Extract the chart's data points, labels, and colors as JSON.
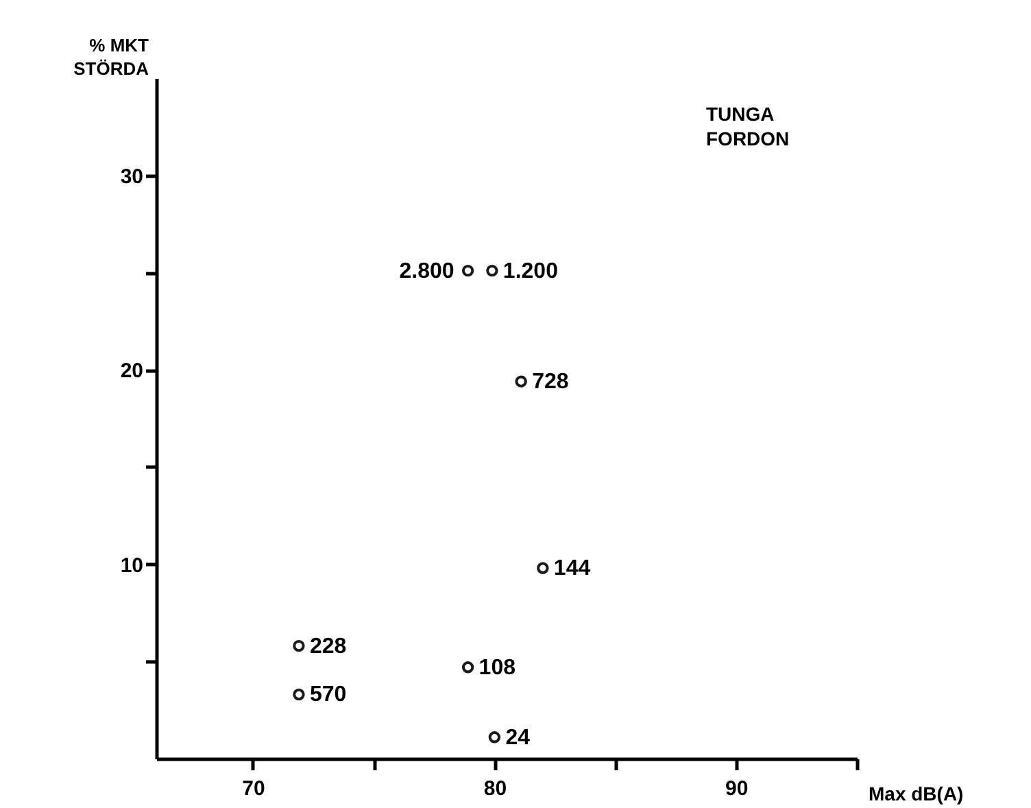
{
  "chart_data": {
    "type": "scatter",
    "xlabel": "Max dB(A)",
    "ylabel": "% MKT\nSTÖRDA",
    "annotations": [
      "TUNGA\nFORDON",
      {
        "text": "2.800",
        "x": 78.9,
        "y": 25.1
      },
      {
        "text": "1.200",
        "x": 79.9,
        "y": 25.1
      },
      {
        "text": "728",
        "x": 81.1,
        "y": 19.4
      },
      {
        "text": "144",
        "x": 82.0,
        "y": 9.8
      },
      {
        "text": "228",
        "x": 71.9,
        "y": 5.8
      },
      {
        "text": "570",
        "x": 71.9,
        "y": 3.3
      },
      {
        "text": "108",
        "x": 78.9,
        "y": 4.7
      },
      {
        "text": "24",
        "x": 80.0,
        "y": 1.1
      }
    ],
    "x": [
      78.9,
      79.9,
      81.1,
      82.0,
      71.9,
      71.9,
      78.9,
      80.0
    ],
    "series": [
      {
        "color": "#1a1a1a",
        "values": [
          25.1,
          25.1,
          19.4,
          9.8,
          5.8,
          3.3,
          4.7,
          1.1
        ]
      }
    ],
    "xlim": [
      66,
      95
    ],
    "ylim": [
      0,
      35
    ],
    "xticks": [
      70,
      {
        "value": 75,
        "label": null
      },
      80,
      {
        "value": 85,
        "label": null
      },
      90,
      {
        "value": 95,
        "label": null
      }
    ],
    "yticks": [
      {
        "value": 5,
        "label": null
      },
      10,
      {
        "value": 15,
        "label": null
      },
      20,
      {
        "value": 25,
        "label": null
      },
      30
    ],
    "marker": "circle",
    "grid": false
  }
}
